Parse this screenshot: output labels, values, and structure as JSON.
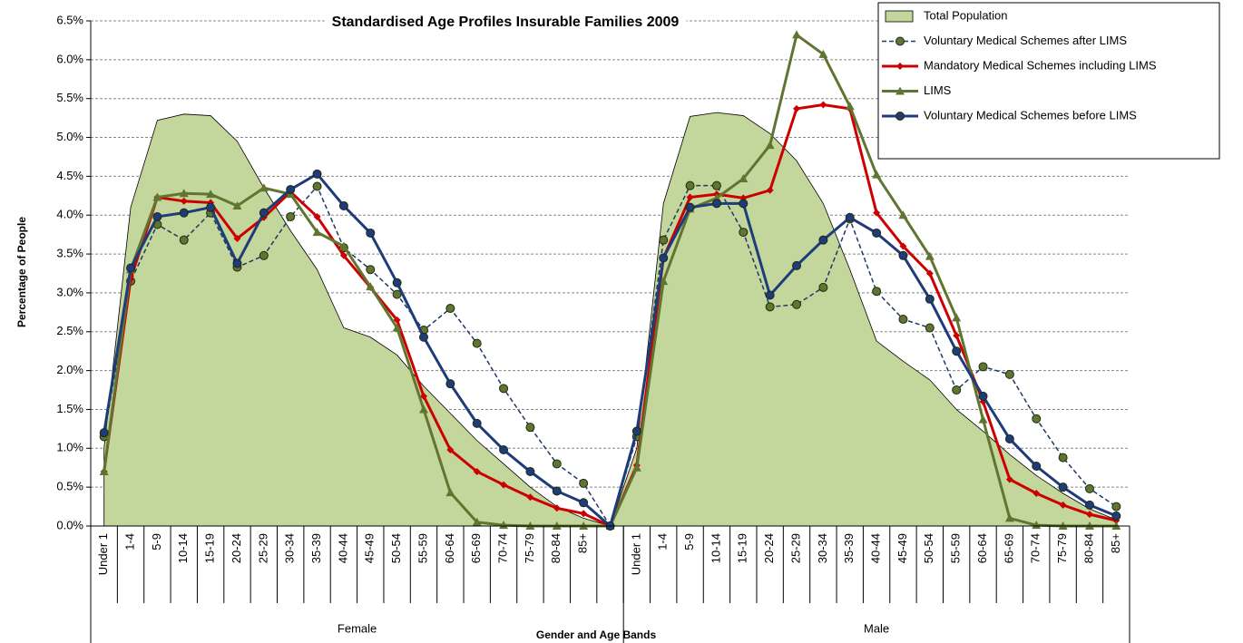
{
  "chart_data": {
    "type": "line",
    "title": "Standardised Age Profiles Insurable Families 2009",
    "y_label": "Percentage of People",
    "x_label": "Gender and Age Bands",
    "categories": [
      "Under 1",
      "1-4",
      "5-9",
      "10-14",
      "15-19",
      "20-24",
      "25-29",
      "30-34",
      "35-39",
      "40-44",
      "45-49",
      "50-54",
      "55-59",
      "60-64",
      "65-69",
      "70-74",
      "75-79",
      "80-84",
      "85+",
      null,
      "Under 1",
      "1-4",
      "5-9",
      "10-14",
      "15-19",
      "20-24",
      "25-29",
      "30-34",
      "35-39",
      "40-44",
      "45-49",
      "50-54",
      "55-59",
      "60-64",
      "65-69",
      "70-74",
      "75-79",
      "80-84",
      "85+"
    ],
    "category_groups": [
      {
        "label": "Female",
        "count": 20
      },
      {
        "label": "Male",
        "count": 19
      }
    ],
    "ylim": [
      0,
      6.5
    ],
    "yticks": [
      {
        "value": 0,
        "label": "0.0%"
      },
      {
        "value": 0.5,
        "label": "0.5%"
      },
      {
        "value": 1,
        "label": "1.0%"
      },
      {
        "value": 1.5,
        "label": "1.5%"
      },
      {
        "value": 2,
        "label": "2.0%"
      },
      {
        "value": 2.5,
        "label": "2.5%"
      },
      {
        "value": 3,
        "label": "3.0%"
      },
      {
        "value": 3.5,
        "label": "3.5%"
      },
      {
        "value": 4,
        "label": "4.0%"
      },
      {
        "value": 4.5,
        "label": "4.5%"
      },
      {
        "value": 5,
        "label": "5.0%"
      },
      {
        "value": 5.5,
        "label": "5.5%"
      },
      {
        "value": 6,
        "label": "6.0%"
      },
      {
        "value": 6.5,
        "label": "6.5%"
      }
    ],
    "grid": true,
    "legend": "top-right",
    "series": [
      {
        "name": "Total Population",
        "kind": "area",
        "color": "#c3d69b",
        "values": [
          1.0,
          4.1,
          5.22,
          5.3,
          5.28,
          4.95,
          4.35,
          3.8,
          3.3,
          2.55,
          2.43,
          2.2,
          1.8,
          1.45,
          1.1,
          0.8,
          0.5,
          0.25,
          0.1,
          0,
          1.0,
          4.15,
          5.27,
          5.32,
          5.28,
          5.05,
          4.7,
          4.15,
          3.3,
          2.38,
          2.12,
          1.88,
          1.5,
          1.22,
          0.92,
          0.65,
          0.42,
          0.22,
          0.08
        ]
      },
      {
        "name": "Voluntary Medical Schemes after LIMS",
        "kind": "line",
        "color": "#1f3864",
        "marker_color": "#5f7530",
        "marker": "circle",
        "dashed": true,
        "values": [
          1.15,
          3.15,
          3.88,
          3.68,
          4.03,
          3.33,
          3.48,
          3.98,
          4.37,
          3.58,
          3.3,
          2.98,
          2.52,
          2.8,
          2.35,
          1.77,
          1.27,
          0.8,
          0.55,
          0,
          1.15,
          3.68,
          4.38,
          4.38,
          3.78,
          2.82,
          2.85,
          3.07,
          3.95,
          3.02,
          2.66,
          2.55,
          1.75,
          2.05,
          1.95,
          1.38,
          0.88,
          0.48,
          0.25
        ]
      },
      {
        "name": "Mandatory Medical Schemes including LIMS",
        "kind": "line",
        "color": "#cc0000",
        "marker_color": "#cc0000",
        "marker": "diamond",
        "dashed": false,
        "values": [
          0.7,
          3.18,
          4.23,
          4.18,
          4.16,
          3.7,
          3.97,
          4.3,
          3.98,
          3.48,
          3.07,
          2.65,
          1.67,
          0.98,
          0.7,
          0.53,
          0.37,
          0.23,
          0.16,
          0,
          0.78,
          3.45,
          4.23,
          4.27,
          4.22,
          4.32,
          5.37,
          5.42,
          5.37,
          4.03,
          3.6,
          3.25,
          2.45,
          1.6,
          0.6,
          0.42,
          0.27,
          0.15,
          0.07
        ]
      },
      {
        "name": "LIMS",
        "kind": "line",
        "color": "#5f7530",
        "marker_color": "#5f7530",
        "marker": "triangle",
        "dashed": false,
        "values": [
          0.7,
          3.3,
          4.23,
          4.28,
          4.27,
          4.12,
          4.35,
          4.27,
          3.78,
          3.6,
          3.08,
          2.55,
          1.5,
          0.43,
          0.05,
          0.01,
          0,
          0,
          0,
          0,
          0.75,
          3.15,
          4.08,
          4.22,
          4.47,
          4.9,
          6.32,
          6.07,
          5.4,
          4.52,
          4.0,
          3.47,
          2.68,
          1.37,
          0.1,
          0.01,
          0,
          0,
          0
        ]
      },
      {
        "name": "Voluntary Medical Schemes before LIMS",
        "kind": "line",
        "color": "#1f3c7a",
        "marker_color": "#1f3c7a",
        "marker": "circle",
        "dashed": false,
        "values": [
          1.2,
          3.32,
          3.98,
          4.03,
          4.1,
          3.38,
          4.03,
          4.33,
          4.53,
          4.12,
          3.77,
          3.13,
          2.43,
          1.83,
          1.32,
          0.98,
          0.7,
          0.45,
          0.3,
          0,
          1.22,
          3.45,
          4.1,
          4.15,
          4.15,
          2.97,
          3.35,
          3.68,
          3.97,
          3.77,
          3.48,
          2.92,
          2.25,
          1.67,
          1.12,
          0.77,
          0.5,
          0.27,
          0.13
        ]
      }
    ]
  }
}
